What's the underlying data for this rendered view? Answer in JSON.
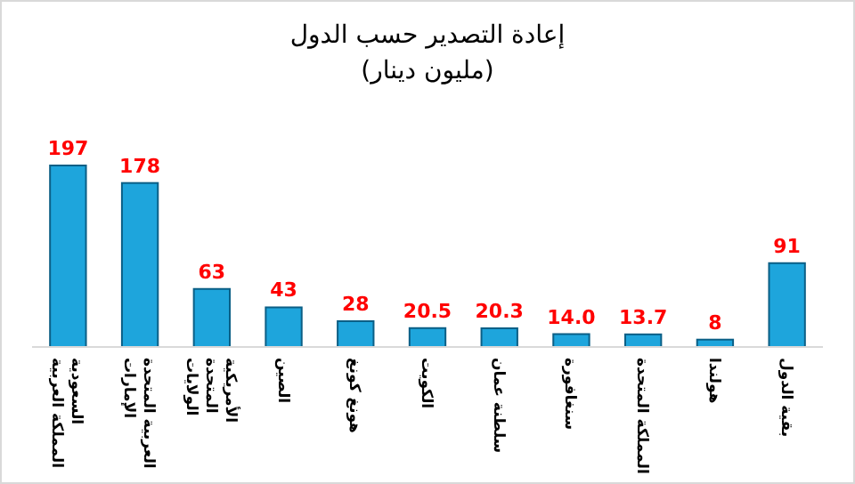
{
  "chart_data": {
    "type": "bar",
    "title": "إعادة التصدير حسب الدول",
    "subtitle": "(مليون دينار)",
    "categories": [
      "المملكة العربية السعودية",
      "الإمارات العربية المتحدة",
      "الولايات المتحدة الأمريكية",
      "الصين",
      "هونغ كونغ",
      "الكويت",
      "سلطنة عمان",
      "سنغافورة",
      "المملكة المتحدة",
      "هولندا",
      "بقية الدول"
    ],
    "values": [
      197,
      178,
      63,
      43,
      28,
      20.5,
      20.3,
      14.0,
      13.7,
      8,
      91
    ],
    "value_labels": [
      "197",
      "178",
      "63",
      "43",
      "28",
      "20.5",
      "20.3",
      "14.0",
      "13.7",
      "8",
      "91"
    ],
    "color": "#1ea5dc"
  }
}
